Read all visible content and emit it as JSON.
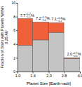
{
  "chart_data": {
    "type": "bar",
    "stacked": true,
    "log": "x",
    "xlabel": "Planet Size [Earth-radii]",
    "ylabel": "Fraction of Stars with Planets Within 0.25 AU",
    "bins": [
      1,
      1.4,
      2,
      2.8,
      4
    ],
    "xlim": [
      1,
      4
    ],
    "xticks": [
      {
        "value": 1,
        "label": "1.0"
      },
      {
        "value": 1.4,
        "label": "1.4"
      },
      {
        "value": 2,
        "label": "2.0"
      },
      {
        "value": 2.8,
        "label": "2.8"
      },
      {
        "value": 4,
        "label": "4.0"
      }
    ],
    "ylim": [
      0,
      10
    ],
    "yticks": [
      0,
      2,
      4,
      6,
      8,
      10
    ],
    "series": [
      {
        "color": "#c4c4c4",
        "values": [
          3.8,
          4.6,
          5.7,
          1.9
        ]
      },
      {
        "color": "#f0603a",
        "values": [
          3.9,
          2.6,
          1.4,
          0.1
        ]
      }
    ],
    "top_labels": [
      {
        "value": 7.7,
        "label": "7.7",
        "plus": "+1.2",
        "minus": "−1.1",
        "suffix": "%"
      },
      {
        "value": 7.2,
        "label": "7.2",
        "plus": "+1.2",
        "minus": "−1.0",
        "suffix": "%"
      },
      {
        "value": 7.1,
        "label": "7.1",
        "plus": "+1.3",
        "minus": "−1.1",
        "suffix": "%"
      },
      {
        "value": 2.0,
        "label": "2.0",
        "plus": "+0.7",
        "minus": "−0.5",
        "suffix": "%"
      }
    ]
  }
}
